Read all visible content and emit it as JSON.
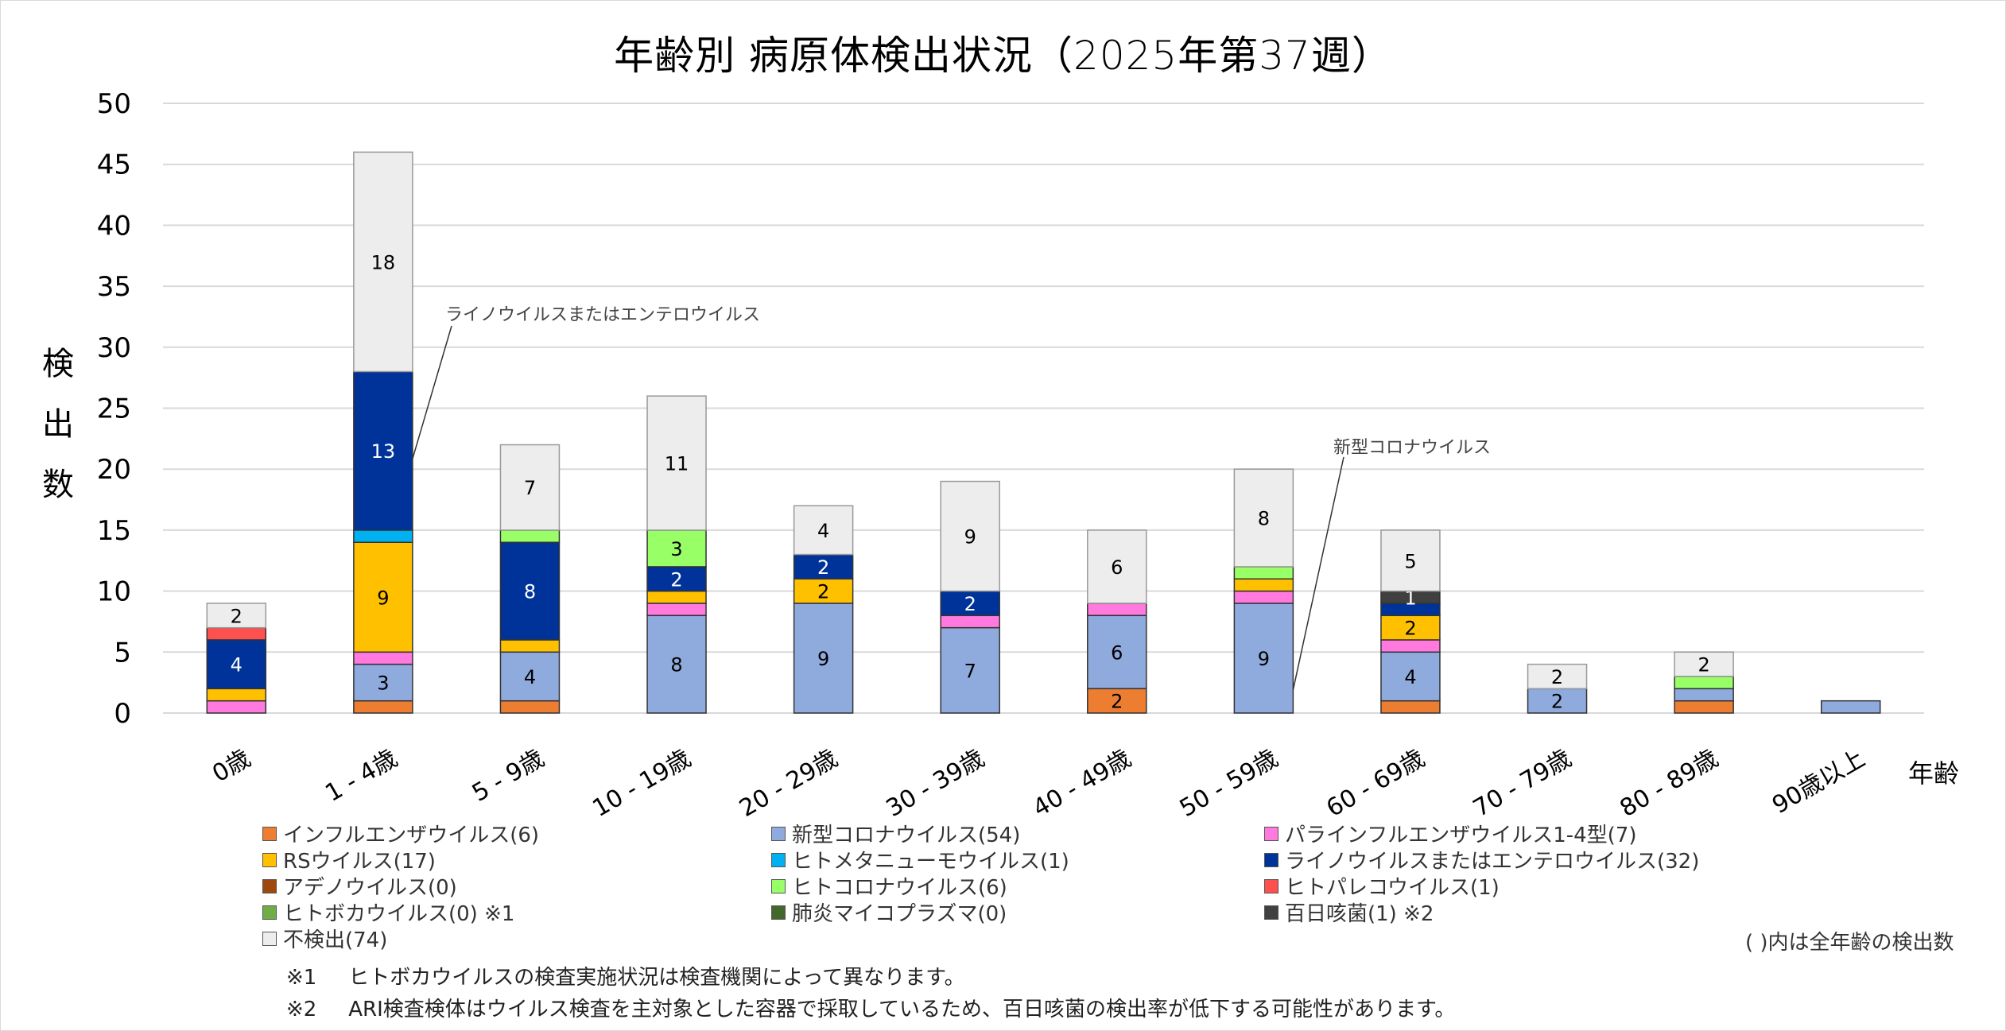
{
  "chart_data": {
    "type": "bar",
    "stacked": true,
    "title": "年齢別 病原体検出状況（2025年第37週）",
    "xlabel": "年齢",
    "ylabel": "検出数",
    "ylim": [
      0,
      50
    ],
    "yticks": [
      0,
      5,
      10,
      15,
      20,
      25,
      30,
      35,
      40,
      45,
      50
    ],
    "grid": true,
    "legend_position": "bottom",
    "categories": [
      "0歳",
      "1 - 4歳",
      "5 - 9歳",
      "10 - 19歳",
      "20 - 29歳",
      "30 - 39歳",
      "40 - 49歳",
      "50 - 59歳",
      "60 - 69歳",
      "70 - 79歳",
      "80 - 89歳",
      "90歳以上"
    ],
    "series": [
      {
        "name": "インフルエンザウイルス",
        "total": 6,
        "color": "#ED7D31",
        "label_color": "#000000",
        "values": [
          0,
          1,
          1,
          0,
          0,
          0,
          2,
          0,
          1,
          0,
          1,
          0
        ]
      },
      {
        "name": "新型コロナウイルス",
        "total": 54,
        "color": "#8FAADC",
        "label_color": "#000000",
        "values": [
          0,
          3,
          4,
          8,
          9,
          7,
          6,
          9,
          4,
          2,
          1,
          1
        ]
      },
      {
        "name": "パラインフルエンザウイルス1-4型",
        "total": 7,
        "color": "#FF79DE",
        "label_color": "#000000",
        "values": [
          1,
          1,
          0,
          1,
          0,
          1,
          1,
          1,
          1,
          0,
          0,
          0
        ]
      },
      {
        "name": "RSウイルス",
        "total": 17,
        "color": "#FFC000",
        "label_color": "#000000",
        "values": [
          1,
          9,
          1,
          1,
          2,
          0,
          0,
          1,
          2,
          0,
          0,
          0
        ]
      },
      {
        "name": "ヒトメタニューモウイルス",
        "total": 1,
        "color": "#00B0F0",
        "label_color": "#000000",
        "values": [
          0,
          1,
          0,
          0,
          0,
          0,
          0,
          0,
          0,
          0,
          0,
          0
        ]
      },
      {
        "name": "ライノウイルスまたはエンテロウイルス",
        "total": 32,
        "color": "#003399",
        "label_color": "#FFFFFF",
        "values": [
          4,
          13,
          8,
          2,
          2,
          2,
          0,
          0,
          1,
          0,
          0,
          0
        ]
      },
      {
        "name": "アデノウイルス",
        "total": 0,
        "color": "#9E480E",
        "label_color": "#FFFFFF",
        "values": [
          0,
          0,
          0,
          0,
          0,
          0,
          0,
          0,
          0,
          0,
          0,
          0
        ]
      },
      {
        "name": "ヒトコロナウイルス",
        "total": 6,
        "color": "#99FF66",
        "label_color": "#000000",
        "values": [
          0,
          0,
          1,
          3,
          0,
          0,
          0,
          1,
          0,
          0,
          1,
          0
        ]
      },
      {
        "name": "ヒトパレコウイルス",
        "total": 1,
        "color": "#FF5050",
        "label_color": "#000000",
        "values": [
          1,
          0,
          0,
          0,
          0,
          0,
          0,
          0,
          0,
          0,
          0,
          0
        ]
      },
      {
        "name": "ヒトボカウイルス",
        "total": 0,
        "color": "#70AD47",
        "label_color": "#000000",
        "values": [
          0,
          0,
          0,
          0,
          0,
          0,
          0,
          0,
          0,
          0,
          0,
          0
        ]
      },
      {
        "name": "肺炎マイコプラズマ",
        "total": 0,
        "color": "#43682B",
        "label_color": "#FFFFFF",
        "values": [
          0,
          0,
          0,
          0,
          0,
          0,
          0,
          0,
          0,
          0,
          0,
          0
        ]
      },
      {
        "name": "百日咳菌",
        "total": 1,
        "color": "#404040",
        "label_color": "#FFFFFF",
        "values": [
          0,
          0,
          0,
          0,
          0,
          0,
          0,
          0,
          1,
          0,
          0,
          0
        ]
      },
      {
        "name": "不検出",
        "total": 74,
        "color": "#EDEDED",
        "label_color": "#000000",
        "values": [
          2,
          18,
          7,
          11,
          4,
          9,
          6,
          8,
          5,
          2,
          2,
          0
        ]
      }
    ],
    "data_labels_min": 2,
    "data_label_exceptions": [
      {
        "series": "百日咳菌",
        "category": "60 - 69歳",
        "value": 1
      }
    ],
    "annotations": [
      {
        "text": "ライノウイルスまたはエンテロウイルス",
        "category": "1 - 4歳",
        "series": "ライノウイルスまたはエンテロウイルス"
      },
      {
        "text": "新型コロナウイルス",
        "category": "50 - 59歳",
        "series": "新型コロナウイルス"
      }
    ]
  },
  "legend": {
    "items": [
      {
        "label": "インフルエンザウイルス(6)",
        "color": "#ED7D31"
      },
      {
        "label": "新型コロナウイルス(54)",
        "color": "#8FAADC"
      },
      {
        "label": "パラインフルエンザウイルス1-4型(7)",
        "color": "#FF79DE"
      },
      {
        "label": "RSウイルス(17)",
        "color": "#FFC000"
      },
      {
        "label": "ヒトメタニューモウイルス(1)",
        "color": "#00B0F0"
      },
      {
        "label": "ライノウイルスまたはエンテロウイルス(32)",
        "color": "#003399"
      },
      {
        "label": "アデノウイルス(0)",
        "color": "#9E480E"
      },
      {
        "label": "ヒトコロナウイルス(6)",
        "color": "#99FF66"
      },
      {
        "label": "ヒトパレコウイルス(1)",
        "color": "#FF5050"
      },
      {
        "label": "ヒトボカウイルス(0) ※1",
        "color": "#70AD47"
      },
      {
        "label": "肺炎マイコプラズマ(0)",
        "color": "#43682B"
      },
      {
        "label": "百日咳菌(1) ※2",
        "color": "#404040"
      },
      {
        "label": "不検出(74)",
        "color": "#EDEDED"
      }
    ],
    "note": "( )内は全年齢の検出数"
  },
  "footnotes": [
    {
      "mark": "※1",
      "text": "ヒトボカウイルスの検査実施状況は検査機関によって異なります。"
    },
    {
      "mark": "※2",
      "text": "ARI検査検体はウイルス検査を主対象とした容器で採取しているため、百日咳菌の検出率が低下する可能性があります。"
    }
  ]
}
